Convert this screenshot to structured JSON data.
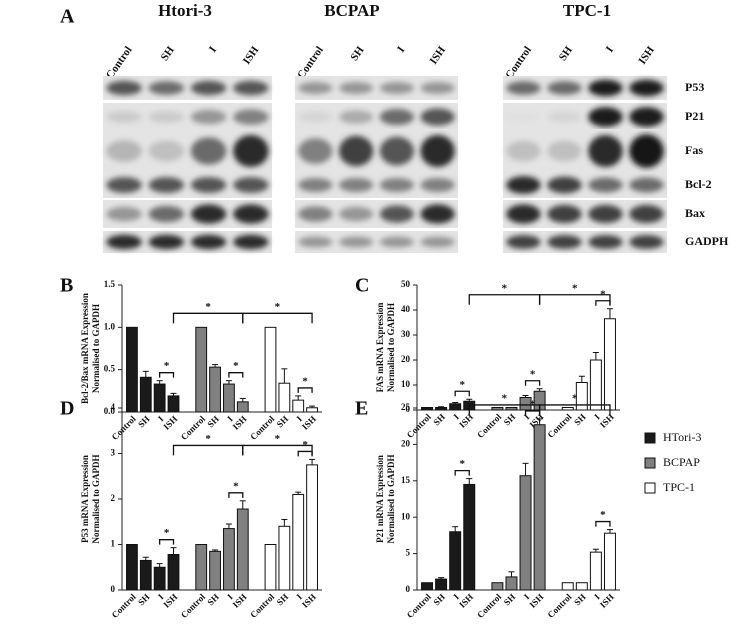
{
  "blot": {
    "panel": "A",
    "cell_lines": [
      "Htori-3",
      "BCPAP",
      "TPC-1"
    ],
    "lanes": [
      "Control",
      "SH",
      "I",
      "ISH"
    ],
    "proteins": [
      "P53",
      "P21",
      "Fas",
      "Bcl-2",
      "Bax",
      "GADPH"
    ]
  },
  "chart_data": [
    {
      "type": "bar",
      "panel": "B",
      "ylabel": [
        "Bcl-2/Bax mRNA Expression",
        "Normalised to GAPDH"
      ],
      "categories": [
        "Control",
        "SH",
        "I",
        "ISH"
      ],
      "series": [
        {
          "name": "HTori-3",
          "color": "#1a1a1a",
          "values": [
            1.0,
            0.41,
            0.33,
            0.19
          ],
          "errors": [
            0,
            0.07,
            0.04,
            0.03
          ]
        },
        {
          "name": "BCPAP",
          "color": "#808080",
          "values": [
            1.0,
            0.53,
            0.33,
            0.12
          ],
          "errors": [
            0,
            0.03,
            0.04,
            0.04
          ]
        },
        {
          "name": "TPC-1",
          "color": "#ffffff",
          "values": [
            1.0,
            0.34,
            0.14,
            0.05
          ],
          "errors": [
            0,
            0.17,
            0.05,
            0.02
          ]
        }
      ],
      "ylim": [
        0,
        1.5
      ],
      "yticks": [
        {
          "value": 0,
          "label": "0.0"
        },
        {
          "value": 0.5,
          "label": "0.5"
        },
        {
          "value": 1,
          "label": "1.0"
        },
        {
          "value": 1.5,
          "label": "1.5"
        }
      ],
      "legend": true,
      "significance": [
        {
          "label": "*",
          "from": [
            0,
            2
          ],
          "to": [
            0,
            3
          ]
        },
        {
          "label": "*",
          "from": [
            1,
            2
          ],
          "to": [
            1,
            3
          ]
        },
        {
          "label": "*",
          "from": [
            2,
            2
          ],
          "to": [
            2,
            3
          ]
        },
        {
          "label": "*",
          "from": [
            0,
            3
          ],
          "to": [
            1,
            3
          ],
          "long": true
        },
        {
          "label": "*",
          "from": [
            1,
            3
          ],
          "to": [
            2,
            3
          ],
          "long": true
        }
      ]
    },
    {
      "type": "bar",
      "panel": "C",
      "ylabel": [
        "FAS mRNA Expression",
        "Normalised to GAPDH"
      ],
      "categories": [
        "Control",
        "SH",
        "I",
        "ISH"
      ],
      "series": [
        {
          "color": "#1a1a1a",
          "values": [
            1,
            1,
            2.5,
            3.5
          ],
          "errors": [
            0,
            0.3,
            0.5,
            0.8
          ]
        },
        {
          "color": "#808080",
          "values": [
            1,
            1,
            5,
            7.5
          ],
          "errors": [
            0,
            0,
            0.8,
            1
          ]
        },
        {
          "color": "#ffffff",
          "values": [
            1,
            11,
            20,
            36.5
          ],
          "errors": [
            0,
            2.5,
            3,
            4
          ]
        }
      ],
      "ylim": [
        0,
        50
      ],
      "yticks": [
        0,
        10,
        20,
        30,
        40,
        50
      ],
      "significance": [
        {
          "label": "*",
          "from": [
            0,
            2
          ],
          "to": [
            0,
            3
          ]
        },
        {
          "label": "*",
          "from": [
            1,
            2
          ],
          "to": [
            1,
            3
          ]
        },
        {
          "label": "*",
          "from": [
            2,
            2
          ],
          "to": [
            2,
            3
          ]
        },
        {
          "label": "*",
          "from": [
            0,
            3
          ],
          "to": [
            1,
            3
          ],
          "long": true
        },
        {
          "label": "*",
          "from": [
            1,
            3
          ],
          "to": [
            2,
            3
          ],
          "long": true
        }
      ]
    },
    {
      "type": "bar",
      "panel": "D",
      "ylabel": [
        "P53 mRNA Expression",
        "Normalised to GAPDH"
      ],
      "categories": [
        "Control",
        "SH",
        "I",
        "ISH"
      ],
      "series": [
        {
          "color": "#1a1a1a",
          "values": [
            1.0,
            0.65,
            0.5,
            0.78
          ],
          "errors": [
            0,
            0.07,
            0.08,
            0.15
          ]
        },
        {
          "color": "#808080",
          "values": [
            1.0,
            0.85,
            1.35,
            1.78
          ],
          "errors": [
            0,
            0.03,
            0.1,
            0.18
          ]
        },
        {
          "color": "#ffffff",
          "values": [
            1.0,
            1.4,
            2.1,
            2.75
          ],
          "errors": [
            0,
            0.15,
            0.05,
            0.12
          ]
        }
      ],
      "ylim": [
        0,
        4
      ],
      "yticks": [
        0,
        1,
        2,
        3,
        4
      ],
      "significance": [
        {
          "label": "*",
          "from": [
            0,
            2
          ],
          "to": [
            0,
            3
          ]
        },
        {
          "label": "*",
          "from": [
            1,
            2
          ],
          "to": [
            1,
            3
          ]
        },
        {
          "label": "*",
          "from": [
            2,
            2
          ],
          "to": [
            2,
            3
          ]
        },
        {
          "label": "*",
          "from": [
            0,
            3
          ],
          "to": [
            1,
            3
          ],
          "long": true
        },
        {
          "label": "*",
          "from": [
            1,
            3
          ],
          "to": [
            2,
            3
          ],
          "long": true
        }
      ]
    },
    {
      "type": "bar",
      "panel": "E",
      "ylabel": [
        "P21 mRNA Expression",
        "Normalised to GAPDH"
      ],
      "categories": [
        "Control",
        "SH",
        "I",
        "ISH"
      ],
      "series": [
        {
          "color": "#1a1a1a",
          "values": [
            1,
            1.5,
            8,
            14.5
          ],
          "errors": [
            0,
            0.2,
            0.7,
            0.8
          ]
        },
        {
          "color": "#808080",
          "values": [
            1,
            1.8,
            15.7,
            22.7
          ],
          "errors": [
            0,
            0.7,
            1.7,
            0.8
          ]
        },
        {
          "color": "#ffffff",
          "values": [
            1,
            1,
            5.2,
            7.8
          ],
          "errors": [
            0,
            0,
            0.4,
            0.5
          ]
        }
      ],
      "ylim": [
        0,
        25
      ],
      "yticks": [
        0,
        5,
        10,
        15,
        20,
        25
      ],
      "significance": [
        {
          "label": "*",
          "from": [
            0,
            2
          ],
          "to": [
            0,
            3
          ]
        },
        {
          "label": "*",
          "from": [
            1,
            2
          ],
          "to": [
            1,
            3
          ]
        },
        {
          "label": "*",
          "from": [
            2,
            2
          ],
          "to": [
            2,
            3
          ]
        },
        {
          "label": "*",
          "from": [
            0,
            3
          ],
          "to": [
            1,
            3
          ],
          "long": true
        },
        {
          "label": "*",
          "from": [
            1,
            3
          ],
          "to": [
            2,
            3
          ],
          "long": true
        }
      ]
    }
  ]
}
